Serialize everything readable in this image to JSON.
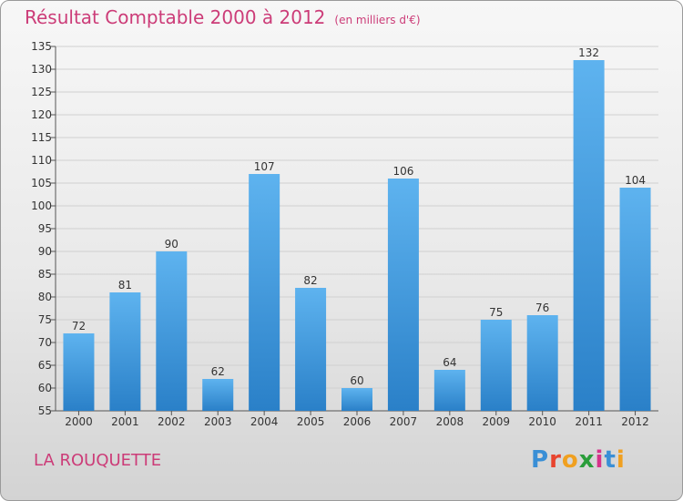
{
  "title": "Résultat Comptable 2000 à 2012",
  "unit": "(en milliers d'€)",
  "town": "LA ROUQUETTE",
  "logo": "Proxiti",
  "colors": {
    "accent": "#cc3c78",
    "bar_light": "#5eb3ef",
    "bar_dark": "#2a80c8"
  },
  "chart_data": {
    "type": "bar",
    "categories": [
      "2000",
      "2001",
      "2002",
      "2003",
      "2004",
      "2005",
      "2006",
      "2007",
      "2008",
      "2009",
      "2010",
      "2011",
      "2012"
    ],
    "values": [
      72,
      81,
      90,
      62,
      107,
      82,
      60,
      106,
      64,
      75,
      76,
      132,
      104
    ],
    "ylim": [
      55,
      135
    ],
    "yticks": [
      55,
      60,
      65,
      70,
      75,
      80,
      85,
      90,
      95,
      100,
      105,
      110,
      115,
      120,
      125,
      130,
      135
    ],
    "grid": true,
    "title": "Résultat Comptable 2000 à 2012",
    "xlabel": "",
    "ylabel": ""
  }
}
